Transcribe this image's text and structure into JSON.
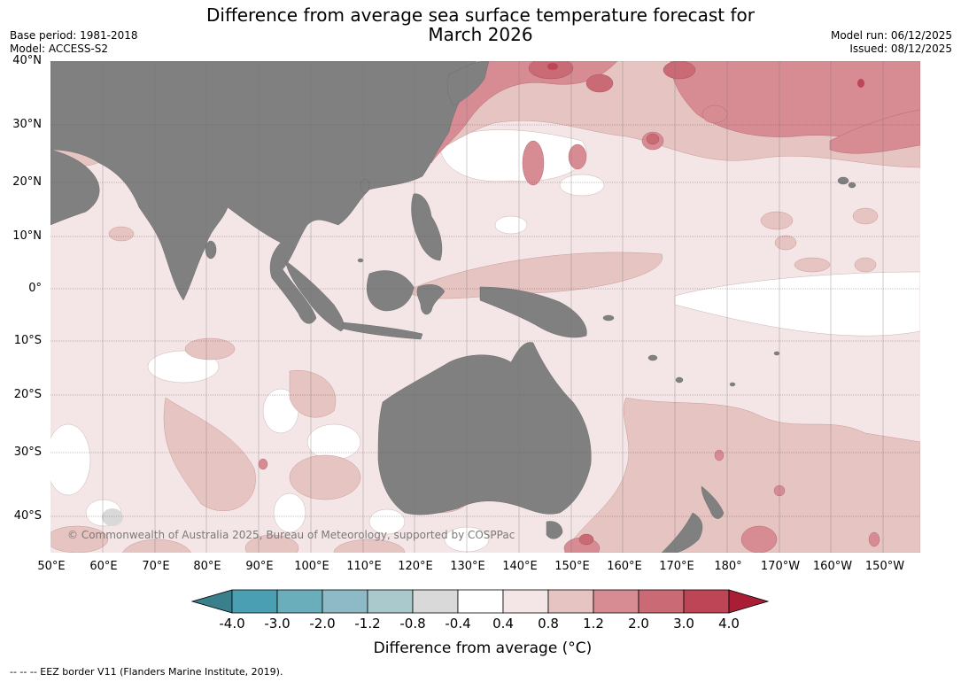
{
  "title_line1": "Difference from average sea surface temperature forecast for",
  "title_line2": "March 2026",
  "meta_left": {
    "base_period": "Base period: 1981-2018",
    "model": "Model: ACCESS-S2"
  },
  "meta_right": {
    "model_run": "Model run: 06/12/2025",
    "issued": "Issued: 08/12/2025"
  },
  "map": {
    "latitude_labels": [
      "40°N",
      "30°N",
      "20°N",
      "10°N",
      "0°",
      "10°S",
      "20°S",
      "30°S",
      "40°S"
    ],
    "longitude_labels": [
      "50°E",
      "60°E",
      "70°E",
      "80°E",
      "90°E",
      "100°E",
      "110°E",
      "120°E",
      "130°E",
      "140°E",
      "150°E",
      "160°E",
      "170°E",
      "180°",
      "170°W",
      "160°W",
      "150°W"
    ],
    "copyright": "© Commonwealth of Australia 2025, Bureau of Meteorology, supported by COSPPac",
    "land_color": "#808080"
  },
  "colorbar": {
    "tick_labels": [
      "-4.0",
      "-3.0",
      "-2.0",
      "-1.2",
      "-0.8",
      "-0.4",
      "0.4",
      "0.8",
      "1.2",
      "2.0",
      "3.0",
      "4.0"
    ],
    "colors": [
      "#3a7f8c",
      "#4aa0b2",
      "#6aaebc",
      "#8dbac6",
      "#a9c9cd",
      "#d9d9d9",
      "#ffffff",
      "#f4e6e6",
      "#e6c4c2",
      "#d78c94",
      "#c96a75",
      "#be4555",
      "#a91e35"
    ],
    "label": "Difference from average (°C)"
  },
  "footer": "--  --  -- EEZ border V11 (Flanders Marine Institute, 2019)."
}
